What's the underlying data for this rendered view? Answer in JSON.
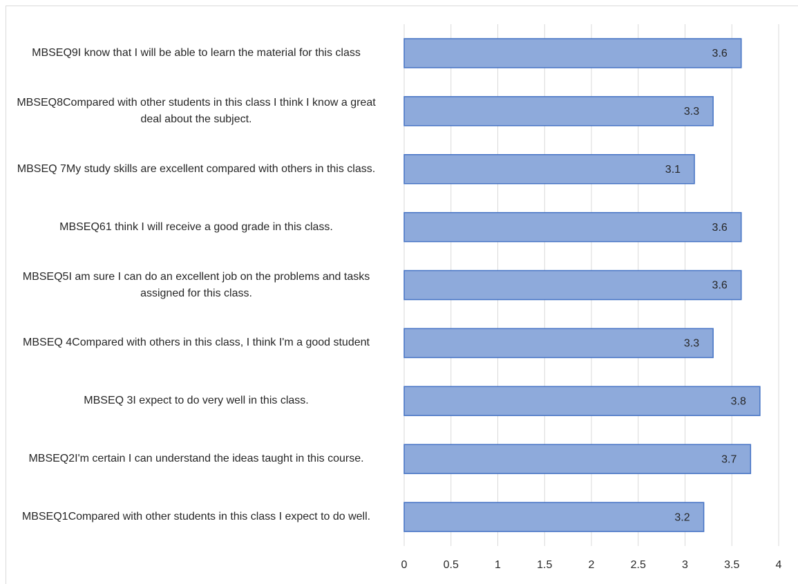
{
  "chart_data": {
    "type": "bar",
    "orientation": "horizontal",
    "categories": [
      "MBSEQ9I know that I will be able to learn the material for this class",
      "MBSEQ8Compared with other students in this class I think I know a great deal about the subject.",
      "MBSEQ 7My study skills are excellent compared with others in this class.",
      "MBSEQ61 think I will receive a good grade in this class.",
      "MBSEQ5I am sure I can do an excellent job on the problems and tasks assigned for this class.",
      "MBSEQ 4Compared with others in this class, I think I'm a good student",
      "MBSEQ 3I expect to do very well in this class.",
      "MBSEQ2I'm certain I can understand the ideas taught in this course.",
      "MBSEQ1Compared with other students in this class I expect to do well."
    ],
    "values": [
      3.6,
      3.3,
      3.1,
      3.6,
      3.6,
      3.3,
      3.8,
      3.7,
      3.2
    ],
    "color": "#8eaadb",
    "edge_color": "#4472c4",
    "xlim": [
      0,
      4
    ],
    "xticks": [
      0,
      0.5,
      1,
      1.5,
      2,
      2.5,
      3,
      3.5,
      4
    ],
    "grid": true
  }
}
